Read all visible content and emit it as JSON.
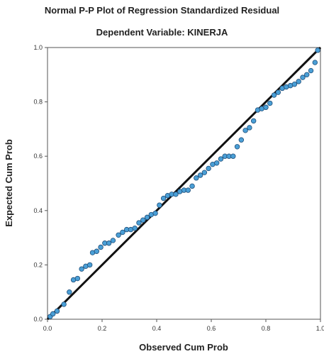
{
  "chart_data": {
    "type": "scatter",
    "title": "Normal P-P Plot of Regression Standardized Residual",
    "subtitle": "Dependent Variable: KINERJA",
    "xlabel": "Observed Cum Prob",
    "ylabel": "Expected Cum Prob",
    "xlim": [
      0,
      1
    ],
    "ylim": [
      0,
      1
    ],
    "xticks": [
      "0.0",
      "0.2",
      "0.4",
      "0.6",
      "0.8",
      "1.0"
    ],
    "yticks": [
      "0.0",
      "0.2",
      "0.4",
      "0.6",
      "0.8",
      "1.0"
    ],
    "grid": false,
    "reference_line": {
      "from": [
        0,
        0
      ],
      "to": [
        1,
        1
      ]
    },
    "marker_color": "#4A9FD6",
    "marker_edge": "#1F4E79",
    "points": [
      {
        "x": 0.01,
        "y": 0.01
      },
      {
        "x": 0.02,
        "y": 0.02
      },
      {
        "x": 0.035,
        "y": 0.03
      },
      {
        "x": 0.06,
        "y": 0.055
      },
      {
        "x": 0.08,
        "y": 0.1
      },
      {
        "x": 0.095,
        "y": 0.145
      },
      {
        "x": 0.11,
        "y": 0.15
      },
      {
        "x": 0.125,
        "y": 0.185
      },
      {
        "x": 0.14,
        "y": 0.195
      },
      {
        "x": 0.155,
        "y": 0.2
      },
      {
        "x": 0.165,
        "y": 0.245
      },
      {
        "x": 0.18,
        "y": 0.25
      },
      {
        "x": 0.195,
        "y": 0.265
      },
      {
        "x": 0.21,
        "y": 0.28
      },
      {
        "x": 0.225,
        "y": 0.28
      },
      {
        "x": 0.24,
        "y": 0.29
      },
      {
        "x": 0.26,
        "y": 0.31
      },
      {
        "x": 0.275,
        "y": 0.32
      },
      {
        "x": 0.29,
        "y": 0.33
      },
      {
        "x": 0.305,
        "y": 0.33
      },
      {
        "x": 0.32,
        "y": 0.335
      },
      {
        "x": 0.335,
        "y": 0.355
      },
      {
        "x": 0.35,
        "y": 0.365
      },
      {
        "x": 0.365,
        "y": 0.375
      },
      {
        "x": 0.38,
        "y": 0.385
      },
      {
        "x": 0.395,
        "y": 0.39
      },
      {
        "x": 0.41,
        "y": 0.42
      },
      {
        "x": 0.425,
        "y": 0.445
      },
      {
        "x": 0.44,
        "y": 0.455
      },
      {
        "x": 0.455,
        "y": 0.46
      },
      {
        "x": 0.47,
        "y": 0.46
      },
      {
        "x": 0.485,
        "y": 0.47
      },
      {
        "x": 0.5,
        "y": 0.475
      },
      {
        "x": 0.515,
        "y": 0.475
      },
      {
        "x": 0.53,
        "y": 0.49
      },
      {
        "x": 0.545,
        "y": 0.52
      },
      {
        "x": 0.56,
        "y": 0.53
      },
      {
        "x": 0.575,
        "y": 0.54
      },
      {
        "x": 0.59,
        "y": 0.555
      },
      {
        "x": 0.605,
        "y": 0.57
      },
      {
        "x": 0.62,
        "y": 0.575
      },
      {
        "x": 0.635,
        "y": 0.59
      },
      {
        "x": 0.65,
        "y": 0.6
      },
      {
        "x": 0.665,
        "y": 0.6
      },
      {
        "x": 0.68,
        "y": 0.6
      },
      {
        "x": 0.695,
        "y": 0.635
      },
      {
        "x": 0.71,
        "y": 0.66
      },
      {
        "x": 0.725,
        "y": 0.695
      },
      {
        "x": 0.74,
        "y": 0.705
      },
      {
        "x": 0.755,
        "y": 0.73
      },
      {
        "x": 0.77,
        "y": 0.77
      },
      {
        "x": 0.785,
        "y": 0.775
      },
      {
        "x": 0.8,
        "y": 0.78
      },
      {
        "x": 0.815,
        "y": 0.795
      },
      {
        "x": 0.83,
        "y": 0.825
      },
      {
        "x": 0.845,
        "y": 0.835
      },
      {
        "x": 0.86,
        "y": 0.85
      },
      {
        "x": 0.875,
        "y": 0.855
      },
      {
        "x": 0.89,
        "y": 0.86
      },
      {
        "x": 0.905,
        "y": 0.865
      },
      {
        "x": 0.92,
        "y": 0.875
      },
      {
        "x": 0.935,
        "y": 0.89
      },
      {
        "x": 0.95,
        "y": 0.9
      },
      {
        "x": 0.965,
        "y": 0.915
      },
      {
        "x": 0.98,
        "y": 0.945
      },
      {
        "x": 0.99,
        "y": 0.99
      }
    ]
  }
}
